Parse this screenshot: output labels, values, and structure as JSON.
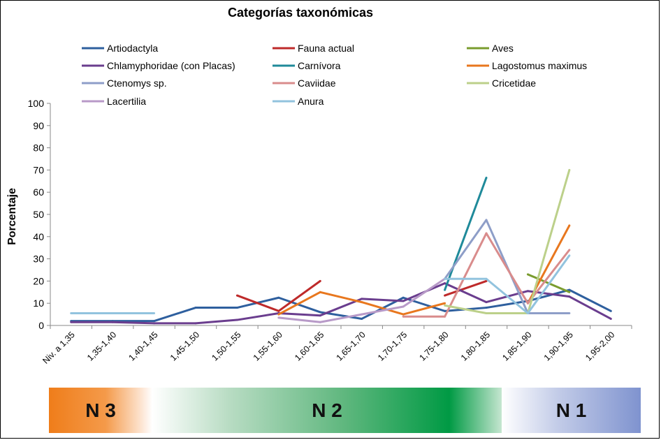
{
  "chart_data": {
    "type": "line",
    "title": "Categorías taxonómicas",
    "ylabel": "Porcentaje",
    "xlabel": "",
    "ylim": [
      0,
      100
    ],
    "yticks": [
      "0",
      "10",
      "20",
      "30",
      "40",
      "50",
      "60",
      "70",
      "80",
      "90",
      "100"
    ],
    "grid": false,
    "legend_position": "top",
    "categories": [
      "Niv. a 1,35",
      "1,35-1,40",
      "1,40-1,45",
      "1,45-1,50",
      "1,50-1,55",
      "1,55-1,60",
      "1,60-1,65",
      "1,65-1,70",
      "1,70-1,75",
      "1,75-1,80",
      "1,80-1,85",
      "1,85-1,90",
      "1,90-1,95",
      "1,95-2,00"
    ],
    "series": [
      {
        "name": "Artiodactyla",
        "color": "#2e5f9e",
        "values": [
          2,
          2,
          2,
          8,
          8,
          12.5,
          6,
          3,
          12.5,
          6.5,
          8,
          11,
          16,
          6.5
        ]
      },
      {
        "name": "Fauna actual",
        "color": "#be2a2a",
        "values": [
          null,
          null,
          null,
          null,
          13.5,
          6.5,
          20,
          null,
          null,
          13.5,
          20,
          null,
          null,
          null
        ]
      },
      {
        "name": "Aves",
        "color": "#7a9c2e",
        "values": [
          null,
          null,
          null,
          null,
          null,
          null,
          null,
          null,
          null,
          null,
          null,
          23,
          15,
          null
        ]
      },
      {
        "name": "Chlamyphoridae (con Placas)",
        "color": "#6a3d8e",
        "values": [
          1.5,
          1.5,
          1,
          1,
          2.5,
          5.5,
          4.5,
          12,
          11,
          19,
          10.5,
          15.5,
          13,
          3
        ]
      },
      {
        "name": "Carnívora",
        "color": "#1f8a9a",
        "values": [
          null,
          null,
          null,
          null,
          null,
          null,
          null,
          null,
          null,
          16,
          66.5,
          null,
          null,
          null
        ]
      },
      {
        "name": "Lagostomus maximus",
        "color": "#e8771e",
        "values": [
          null,
          null,
          null,
          null,
          null,
          5,
          15,
          10.5,
          5,
          10,
          null,
          10,
          45,
          null
        ]
      },
      {
        "name": "Ctenomys sp.",
        "color": "#8e9ec8",
        "values": [
          null,
          null,
          null,
          null,
          null,
          null,
          null,
          null,
          null,
          21,
          47.5,
          5.5,
          5.5,
          null
        ]
      },
      {
        "name": "Caviidae",
        "color": "#d98c8c",
        "values": [
          null,
          null,
          null,
          null,
          null,
          null,
          null,
          null,
          4,
          4,
          41.5,
          10,
          34,
          null
        ]
      },
      {
        "name": "Cricetidae",
        "color": "#bcd08a",
        "values": [
          null,
          null,
          null,
          null,
          null,
          null,
          null,
          null,
          null,
          9,
          5.5,
          5.5,
          70,
          null
        ]
      },
      {
        "name": "Lacertilia",
        "color": "#b89ac8",
        "values": [
          null,
          null,
          null,
          null,
          null,
          3.5,
          1.5,
          5,
          8.5,
          21,
          null,
          null,
          null,
          null
        ]
      },
      {
        "name": "Anura",
        "color": "#92c3de",
        "values": [
          5.5,
          5.5,
          5.5,
          null,
          null,
          null,
          null,
          null,
          null,
          21,
          21,
          5.5,
          31.5,
          null
        ]
      }
    ]
  },
  "zones": [
    {
      "label": "N 3"
    },
    {
      "label": "N 2"
    },
    {
      "label": "N 1"
    }
  ]
}
